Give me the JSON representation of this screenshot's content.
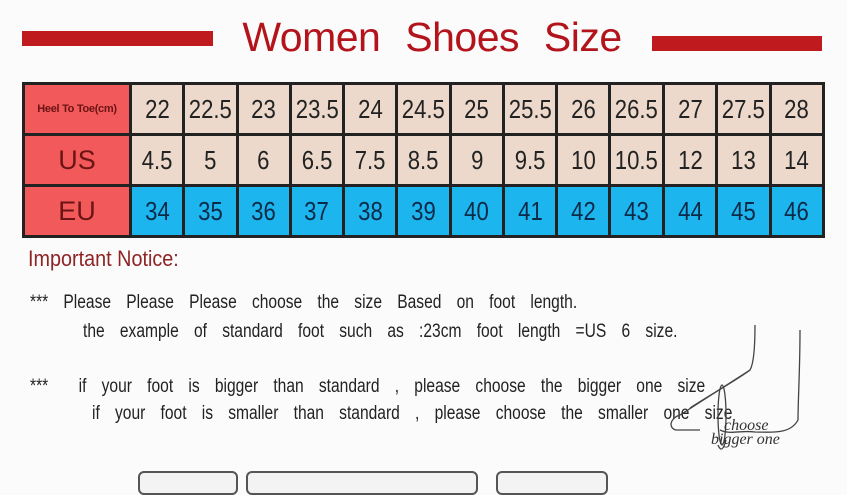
{
  "title": "Women Shoes Size",
  "colors": {
    "title_red": "#b3141c",
    "label_red": "#f2595a",
    "beige": "#ecd9cb",
    "eu_blue": "#1cb5ee"
  },
  "table": {
    "rows": [
      {
        "label": "Heel To Toe(cm)",
        "values": [
          "22",
          "22.5",
          "23",
          "23.5",
          "24",
          "24.5",
          "25",
          "25.5",
          "26",
          "26.5",
          "27",
          "27.5",
          "28"
        ]
      },
      {
        "label": "US",
        "values": [
          "4.5",
          "5",
          "6",
          "6.5",
          "7.5",
          "8.5",
          "9",
          "9.5",
          "10",
          "10.5",
          "12",
          "13",
          "14"
        ]
      },
      {
        "label": "EU",
        "values": [
          "34",
          "35",
          "36",
          "37",
          "38",
          "39",
          "40",
          "41",
          "42",
          "43",
          "44",
          "45",
          "46"
        ]
      }
    ]
  },
  "notice": {
    "heading": "Important Notice:",
    "lines": [
      "***  Please  Please  Please  choose  the  size  Based  on  foot  length.",
      "the  example  of  standard  foot  such  as  :23cm  foot  length  =US  6  size.",
      "***    if  your  foot  is  bigger  than  standard  ,  please  choose  the  bigger  one  size",
      "if  your  foot  is  smaller  than  standard  ,  please  choose  the  smaller  one  size"
    ]
  },
  "illustration": {
    "caption_1": "choose",
    "caption_2": "bigger one",
    "icon": "foot-sketch-icon"
  }
}
